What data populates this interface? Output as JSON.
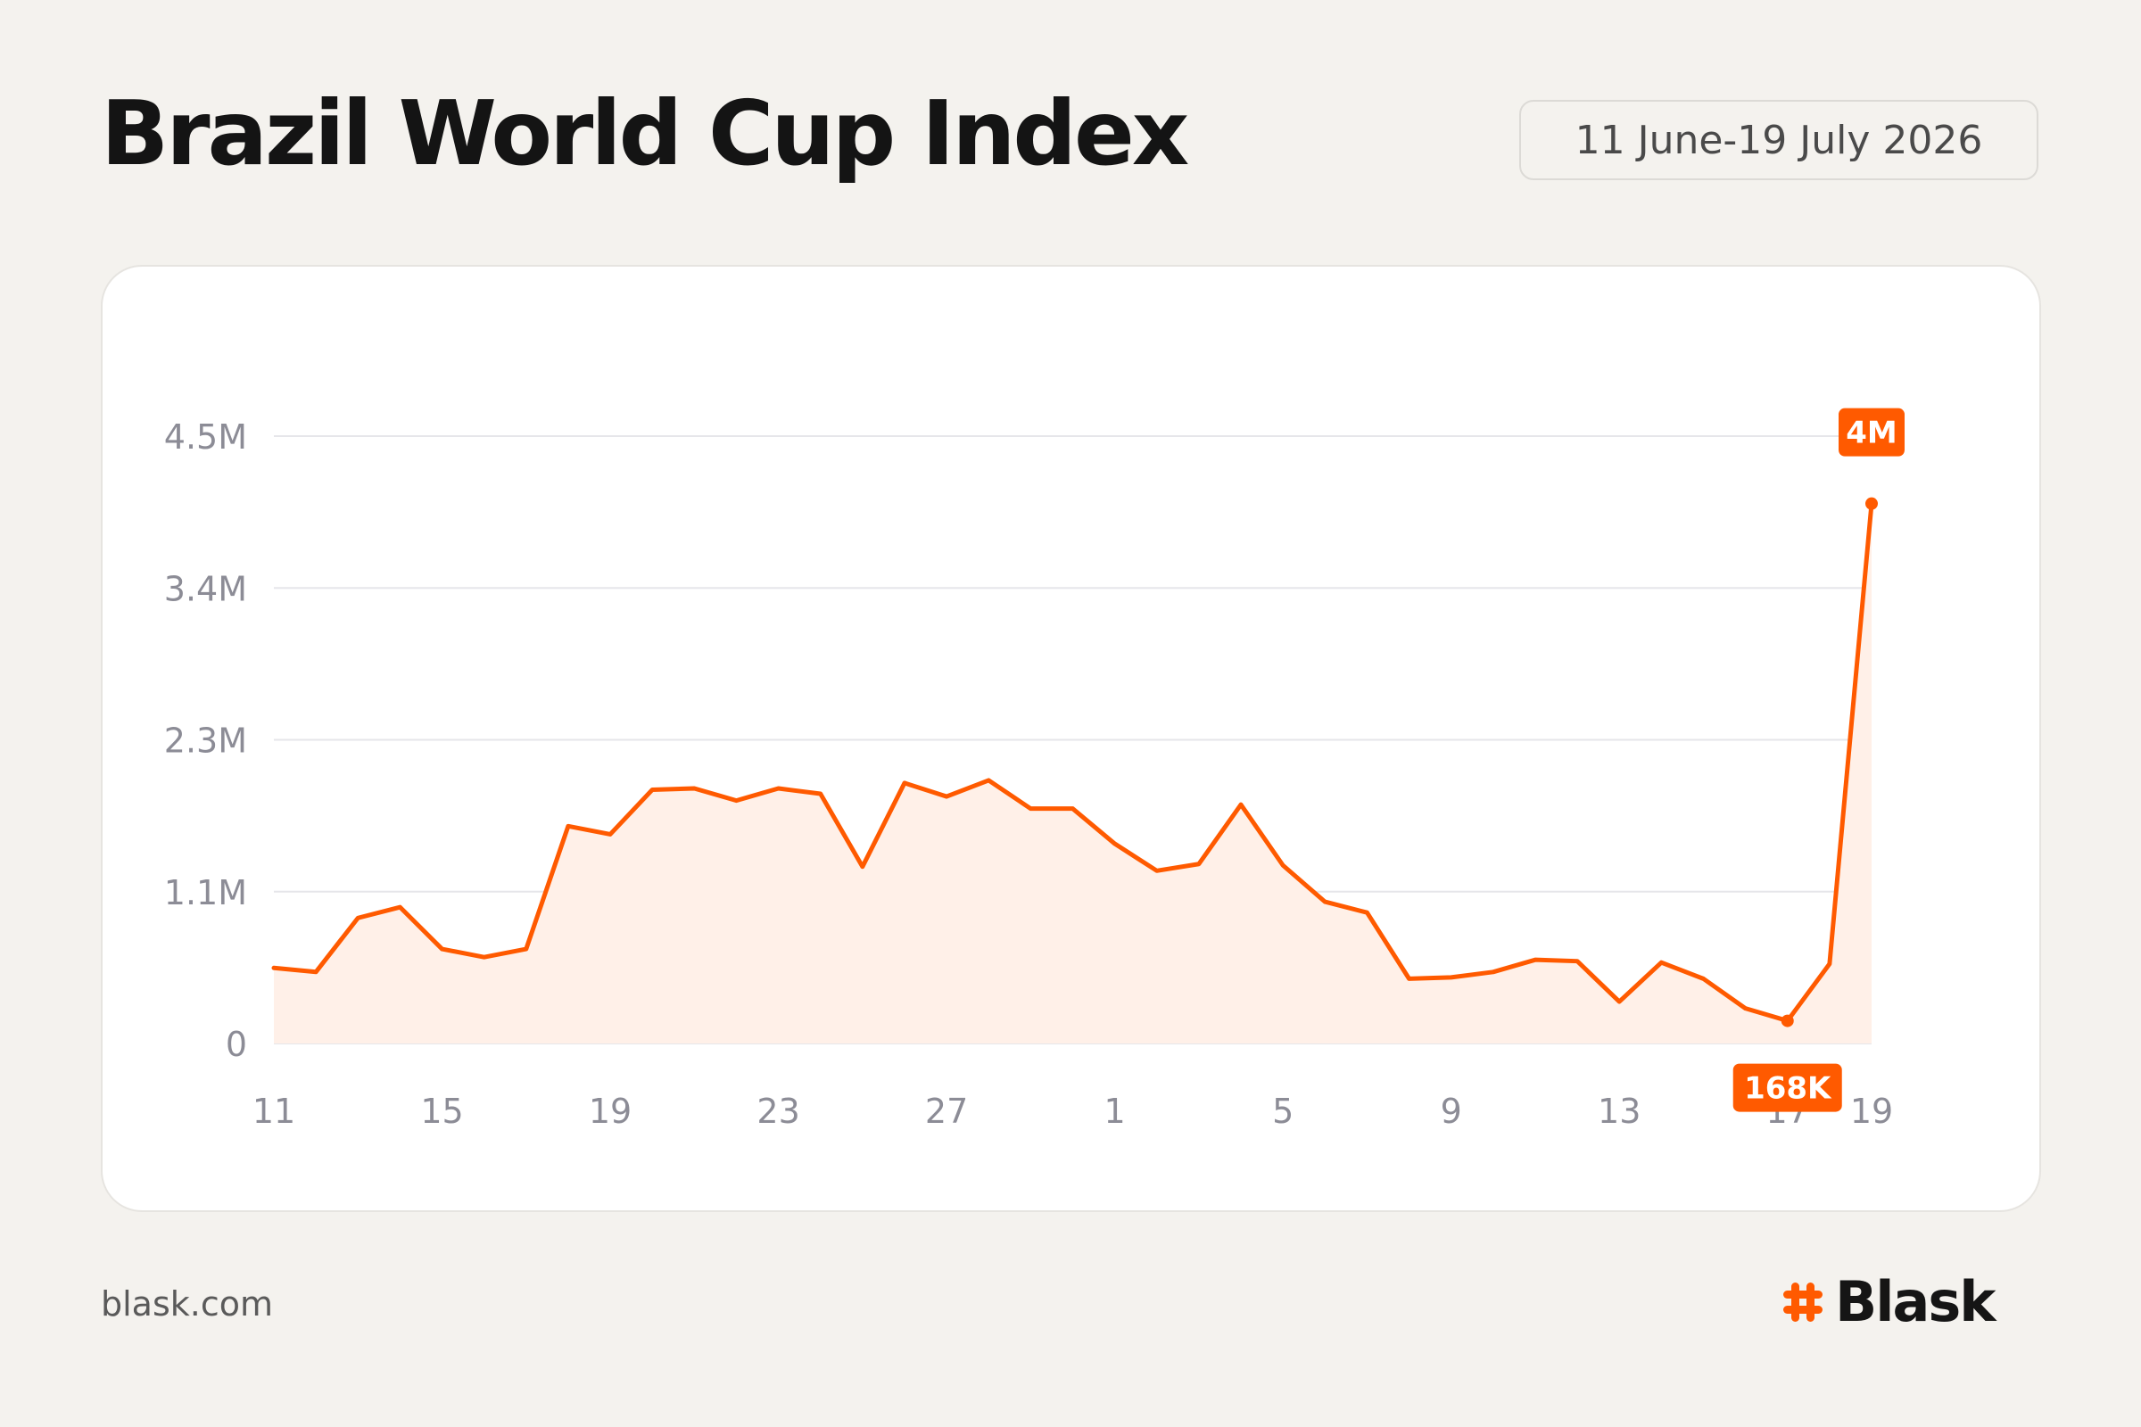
{
  "header": {
    "title": "Brazil World Cup Index",
    "date_range": "11 June-19 July 2026"
  },
  "footer": {
    "site": "blask.com",
    "brand": "Blask",
    "brand_icon": "hash-icon"
  },
  "colors": {
    "accent": "#ff5a00",
    "area_fill": "#fff0e8",
    "grid": "#e6e6ea",
    "tick_text": "#8c8c96"
  },
  "chart_data": {
    "type": "area",
    "ylim": [
      0,
      4500000
    ],
    "y_ticks": [
      {
        "value": 0,
        "label": "0"
      },
      {
        "value": 1125000,
        "label": "1.1M"
      },
      {
        "value": 2250000,
        "label": "2.3M"
      },
      {
        "value": 3375000,
        "label": "3.4M"
      },
      {
        "value": 4500000,
        "label": "4.5M"
      }
    ],
    "x_ticks": [
      {
        "day": 0,
        "label": "11"
      },
      {
        "day": 4,
        "label": "15"
      },
      {
        "day": 8,
        "label": "19"
      },
      {
        "day": 12,
        "label": "23"
      },
      {
        "day": 16,
        "label": "27"
      },
      {
        "day": 20,
        "label": "1"
      },
      {
        "day": 24,
        "label": "5"
      },
      {
        "day": 28,
        "label": "9"
      },
      {
        "day": 32,
        "label": "13"
      },
      {
        "day": 36,
        "label": "17"
      },
      {
        "day": 38,
        "label": "19"
      }
    ],
    "series": [
      {
        "values": [
          560000,
          530000,
          930000,
          1010000,
          700000,
          640000,
          700000,
          1610000,
          1550000,
          1880000,
          1890000,
          1800000,
          1890000,
          1850000,
          1310000,
          1930000,
          1830000,
          1950000,
          1740000,
          1740000,
          1480000,
          1280000,
          1330000,
          1770000,
          1320000,
          1050000,
          970000,
          480000,
          490000,
          530000,
          620000,
          610000,
          310000,
          600000,
          480000,
          260000,
          168000,
          590000,
          4000000
        ]
      }
    ],
    "annotations": [
      {
        "day": 38,
        "value": 4000000,
        "label": "4M",
        "position": "above"
      },
      {
        "day": 36,
        "value": 168000,
        "label": "168K",
        "position": "below"
      }
    ]
  }
}
